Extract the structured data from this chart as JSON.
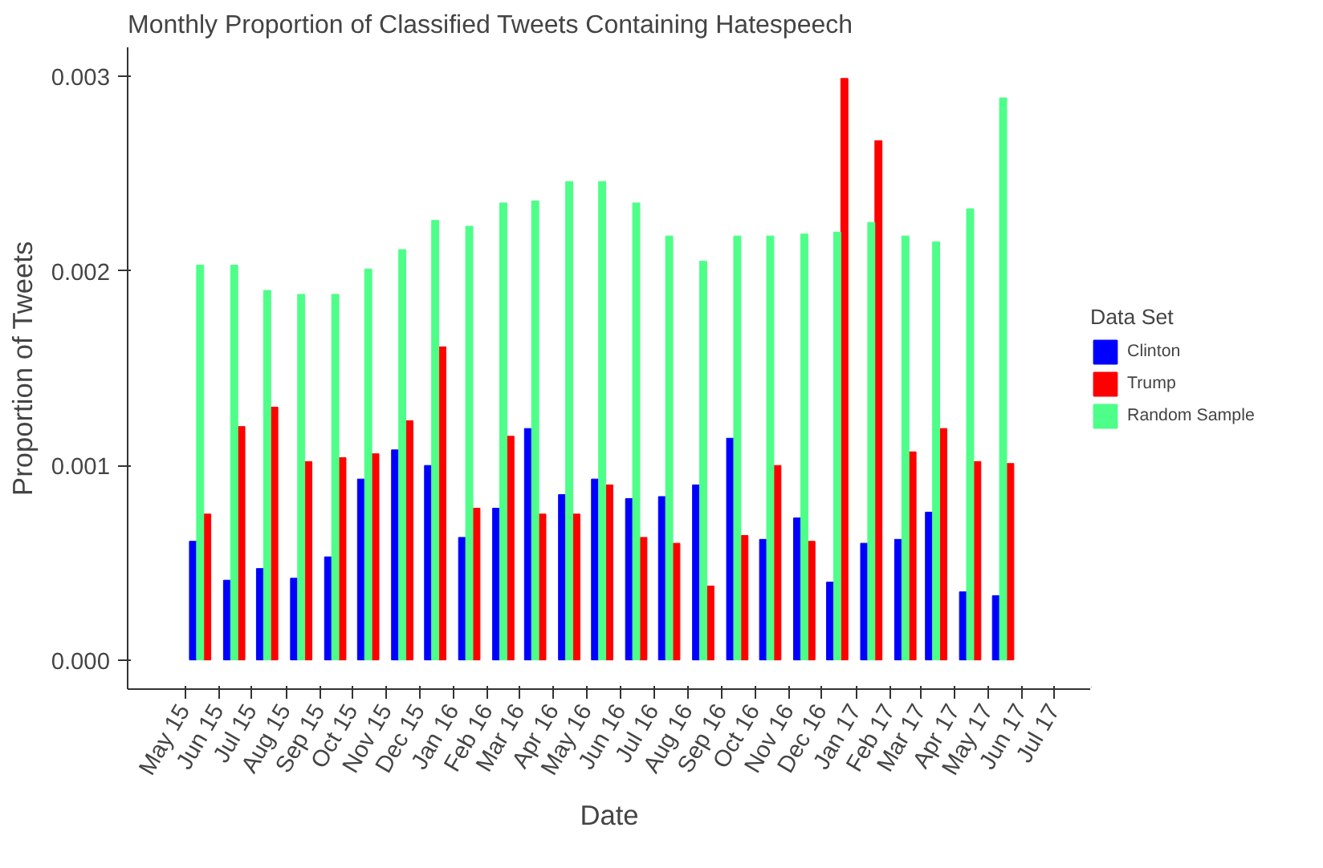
{
  "chart_data": {
    "type": "bar",
    "title": "Monthly Proportion of Classified Tweets Containing Hatespeech",
    "xlabel": "Date",
    "ylabel": "Proportion of Tweets",
    "legend_title": "Data Set",
    "legend": "right",
    "grid": false,
    "x": [
      "2015-05-15",
      "2015-06-15",
      "2015-07-15",
      "2015-08-15",
      "2015-09-15",
      "2015-10-15",
      "2015-11-15",
      "2015-12-15",
      "2016-01-15",
      "2016-02-15",
      "2016-03-15",
      "2016-04-15",
      "2016-05-15",
      "2016-06-15",
      "2016-07-15",
      "2016-08-15",
      "2016-09-15",
      "2016-10-15",
      "2016-11-15",
      "2016-12-15",
      "2017-01-15",
      "2017-02-15",
      "2017-03-15",
      "2017-04-15",
      "2017-05-15"
    ],
    "series": [
      {
        "name": "Clinton",
        "color": "#0000ff",
        "values": [
          0.00061,
          0.00041,
          0.00047,
          0.00042,
          0.00053,
          0.00093,
          0.00108,
          0.001,
          0.00063,
          0.00078,
          0.00119,
          0.00085,
          0.00093,
          0.00083,
          0.00084,
          0.0009,
          0.00114,
          0.00062,
          0.00073,
          0.0004,
          0.0006,
          0.00062,
          0.00076,
          0.00035,
          0.00033
        ]
      },
      {
        "name": "Trump",
        "color": "#ff0000",
        "values": [
          0.00075,
          0.0012,
          0.0013,
          0.00102,
          0.00104,
          0.00106,
          0.00123,
          0.00161,
          0.00078,
          0.00115,
          0.00075,
          0.00075,
          0.0009,
          0.00063,
          0.0006,
          0.00038,
          0.00064,
          0.001,
          0.00061,
          0.00299,
          0.00267,
          0.00107,
          0.00119,
          0.00102,
          0.00101
        ]
      },
      {
        "name": "Random Sample",
        "color": "#4dff88",
        "values": [
          0.00203,
          0.00203,
          0.0019,
          0.00188,
          0.00188,
          0.00201,
          0.00211,
          0.00226,
          0.00223,
          0.00235,
          0.00236,
          0.00246,
          0.00246,
          0.00235,
          0.00218,
          0.00205,
          0.00218,
          0.00218,
          0.00219,
          0.0022,
          0.00225,
          0.00218,
          0.00215,
          0.00232,
          0.00289
        ]
      }
    ],
    "xlim": [
      "2015-03-10",
      "2017-08-03"
    ],
    "xticks": [
      {
        "value": "2015-05",
        "label": "May 15"
      },
      {
        "value": "2015-06",
        "label": "Jun 15"
      },
      {
        "value": "2015-07",
        "label": "Jul 15"
      },
      {
        "value": "2015-08",
        "label": "Aug 15"
      },
      {
        "value": "2015-09",
        "label": "Sep 15"
      },
      {
        "value": "2015-10",
        "label": "Oct 15"
      },
      {
        "value": "2015-11",
        "label": "Nov 15"
      },
      {
        "value": "2015-12",
        "label": "Dec 15"
      },
      {
        "value": "2016-01",
        "label": "Jan 16"
      },
      {
        "value": "2016-02",
        "label": "Feb 16"
      },
      {
        "value": "2016-03",
        "label": "Mar 16"
      },
      {
        "value": "2016-04",
        "label": "Apr 16"
      },
      {
        "value": "2016-05",
        "label": "May 16"
      },
      {
        "value": "2016-06",
        "label": "Jun 16"
      },
      {
        "value": "2016-07",
        "label": "Jul 16"
      },
      {
        "value": "2016-08",
        "label": "Aug 16"
      },
      {
        "value": "2016-09",
        "label": "Sep 16"
      },
      {
        "value": "2016-10",
        "label": "Oct 16"
      },
      {
        "value": "2016-11",
        "label": "Nov 16"
      },
      {
        "value": "2016-12",
        "label": "Dec 16"
      },
      {
        "value": "2017-01",
        "label": "Jan 17"
      },
      {
        "value": "2017-02",
        "label": "Feb 17"
      },
      {
        "value": "2017-03",
        "label": "Mar 17"
      },
      {
        "value": "2017-04",
        "label": "Apr 17"
      },
      {
        "value": "2017-05",
        "label": "May 17"
      },
      {
        "value": "2017-06",
        "label": "Jun 17"
      },
      {
        "value": "2017-07",
        "label": "Jul 17"
      }
    ],
    "ylim": [
      -0.00015,
      0.00315
    ],
    "yticks": [
      {
        "value": 0,
        "label": "0.000"
      },
      {
        "value": 0.001,
        "label": "0.001"
      },
      {
        "value": 0.002,
        "label": "0.002"
      },
      {
        "value": 0.003,
        "label": "0.003"
      }
    ]
  }
}
